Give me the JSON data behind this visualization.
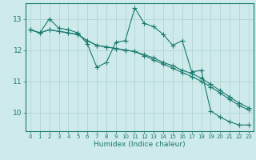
{
  "xlabel": "Humidex (Indice chaleur)",
  "bg_color": "#ceeaea",
  "line_color": "#1a7a6e",
  "grid_color": "#afd0d0",
  "xlim": [
    -0.5,
    23.5
  ],
  "ylim": [
    9.4,
    13.5
  ],
  "yticks": [
    10,
    11,
    12,
    13
  ],
  "xticks": [
    0,
    1,
    2,
    3,
    4,
    5,
    6,
    7,
    8,
    9,
    10,
    11,
    12,
    13,
    14,
    15,
    16,
    17,
    18,
    19,
    20,
    21,
    22,
    23
  ],
  "series1_x": [
    0,
    1,
    2,
    3,
    4,
    5,
    6,
    7,
    8,
    9,
    10,
    11,
    12,
    13,
    14,
    15,
    16,
    17,
    18,
    19,
    20,
    21,
    22,
    23
  ],
  "series1_y": [
    12.65,
    12.55,
    13.0,
    12.7,
    12.65,
    12.55,
    12.2,
    11.45,
    11.6,
    12.25,
    12.3,
    13.35,
    12.85,
    12.75,
    12.5,
    12.15,
    12.3,
    11.3,
    11.35,
    10.05,
    9.85,
    9.7,
    9.6,
    9.6
  ],
  "series2_x": [
    0,
    1,
    2,
    3,
    4,
    5,
    6,
    7,
    8,
    9,
    10,
    11,
    12,
    13,
    14,
    15,
    16,
    17,
    18,
    19,
    20,
    21,
    22,
    23
  ],
  "series2_y": [
    12.65,
    12.55,
    12.65,
    12.6,
    12.55,
    12.5,
    12.3,
    12.15,
    12.1,
    12.05,
    12.0,
    11.95,
    11.85,
    11.75,
    11.6,
    11.5,
    11.35,
    11.25,
    11.1,
    10.9,
    10.7,
    10.5,
    10.3,
    10.15
  ],
  "series3_x": [
    0,
    1,
    2,
    3,
    4,
    5,
    6,
    7,
    8,
    9,
    10,
    11,
    12,
    13,
    14,
    15,
    16,
    17,
    18,
    19,
    20,
    21,
    22,
    23
  ],
  "series3_y": [
    12.65,
    12.55,
    12.65,
    12.6,
    12.55,
    12.5,
    12.3,
    12.15,
    12.1,
    12.05,
    12.0,
    11.95,
    11.82,
    11.68,
    11.55,
    11.42,
    11.28,
    11.15,
    11.0,
    10.82,
    10.62,
    10.42,
    10.22,
    10.08
  ],
  "marker": "+",
  "markersize": 4,
  "linewidth": 0.8
}
